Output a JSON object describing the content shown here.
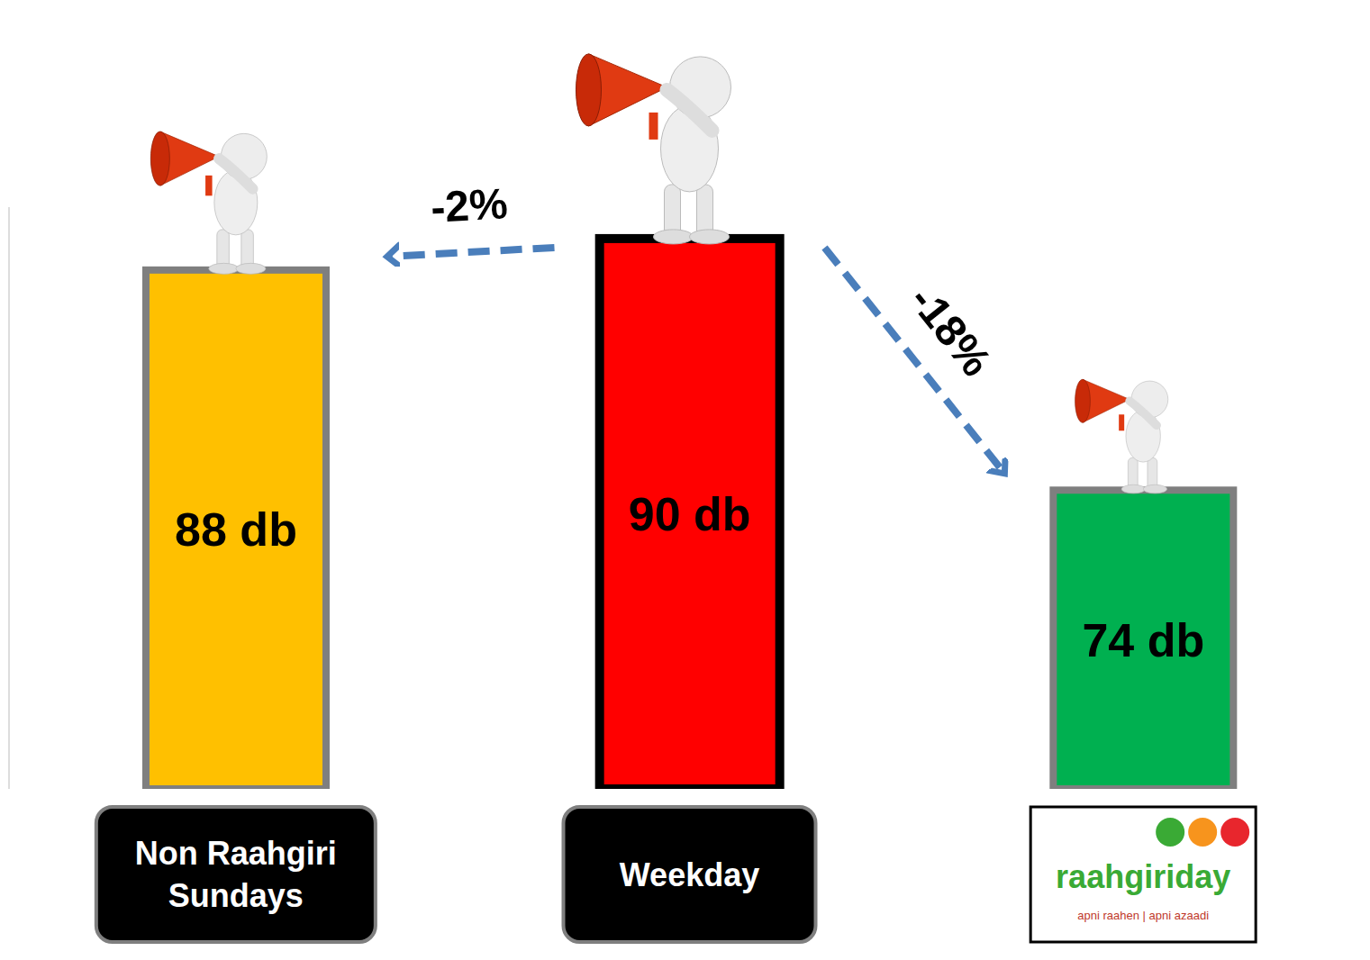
{
  "chart_data": {
    "type": "bar",
    "categories": [
      "Non Raahgiri Sundays",
      "Weekday",
      "raahgiriday"
    ],
    "values": [
      88,
      90,
      74
    ],
    "value_labels": [
      "88 db",
      "90 db",
      "74 db"
    ],
    "colors": [
      "#ffc000",
      "#ff0000",
      "#00b050"
    ],
    "ylim": [
      55,
      92
    ],
    "tick_labels": false,
    "data_labels": true,
    "grid": false,
    "annotations": [
      {
        "text": "-2%",
        "from": "Weekday",
        "to": "Non Raahgiri Sundays"
      },
      {
        "text": "-18%",
        "from": "Weekday",
        "to": "raahgiriday"
      }
    ],
    "logo_tagline": "apni raahen | apni azaadi"
  }
}
